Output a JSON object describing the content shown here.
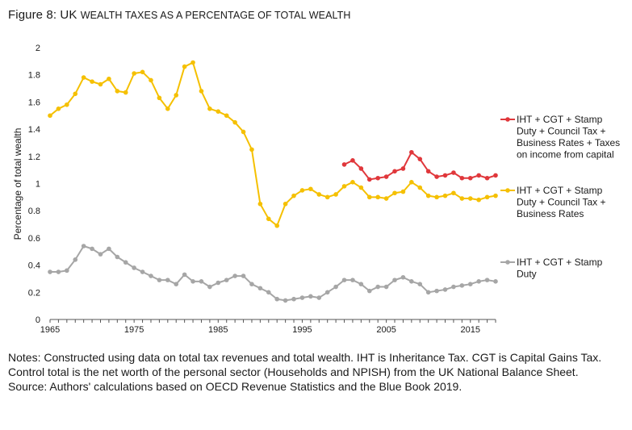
{
  "figure": {
    "label": "Figure 8:",
    "title_prefix": "UK",
    "title_rest": "wealth taxes as a percentage of total wealth"
  },
  "notes": {
    "line1": "Notes: Constructed using data on total tax revenues and total wealth. IHT is Inheritance Tax. CGT is Capital Gains Tax. Control total is the net worth of the personal sector (Households and NPISH) from the UK National Balance Sheet.",
    "line2": "Source: Authors' calculations based on OECD Revenue Statistics and the Blue Book 2019."
  },
  "chart_data": {
    "type": "line",
    "title": "UK wealth taxes as a percentage of total wealth",
    "xlabel": "",
    "ylabel": "Percentage of total wealth",
    "xlim": [
      1965,
      2018
    ],
    "ylim": [
      0,
      2
    ],
    "x_ticks": [
      1965,
      1975,
      1985,
      1995,
      2005,
      2015
    ],
    "y_ticks": [
      0,
      0.2,
      0.4,
      0.6,
      0.8,
      1,
      1.2,
      1.4,
      1.6,
      1.8,
      2
    ],
    "grid": false,
    "legend_position": "right",
    "series": [
      {
        "name": "IHT + CGT + Stamp Duty + Council Tax + Business Rates + Taxes on income from capital",
        "legend_lines": [
          "IHT + CGT + Stamp",
          "Duty + Council Tax +",
          "Business Rates + Taxes",
          "on income from capital"
        ],
        "color": "#e0373b",
        "x_start": 2000,
        "values": [
          1.14,
          1.17,
          1.11,
          1.03,
          1.04,
          1.05,
          1.09,
          1.11,
          1.23,
          1.18,
          1.09,
          1.05,
          1.06,
          1.08,
          1.04,
          1.04,
          1.06,
          1.04,
          1.06
        ]
      },
      {
        "name": "IHT + CGT + Stamp Duty + Council Tax + Business Rates",
        "legend_lines": [
          "IHT + CGT + Stamp",
          "Duty + Council Tax +",
          "Business Rates"
        ],
        "color": "#f5c000",
        "x_start": 1965,
        "values": [
          1.5,
          1.55,
          1.58,
          1.66,
          1.78,
          1.75,
          1.73,
          1.77,
          1.68,
          1.67,
          1.81,
          1.82,
          1.76,
          1.63,
          1.55,
          1.65,
          1.86,
          1.89,
          1.68,
          1.55,
          1.53,
          1.5,
          1.45,
          1.38,
          1.25,
          0.85,
          0.74,
          0.69,
          0.85,
          0.91,
          0.95,
          0.96,
          0.92,
          0.9,
          0.92,
          0.98,
          1.01,
          0.97,
          0.9,
          0.9,
          0.89,
          0.93,
          0.94,
          1.01,
          0.97,
          0.91,
          0.9,
          0.91,
          0.93,
          0.89,
          0.89,
          0.88,
          0.9,
          0.91
        ]
      },
      {
        "name": "IHT + CGT + Stamp Duty",
        "legend_lines": [
          "IHT + CGT + Stamp",
          "Duty"
        ],
        "color": "#a6a6a6",
        "x_start": 1965,
        "values": [
          0.35,
          0.35,
          0.36,
          0.44,
          0.54,
          0.52,
          0.48,
          0.52,
          0.46,
          0.42,
          0.38,
          0.35,
          0.32,
          0.29,
          0.29,
          0.26,
          0.33,
          0.28,
          0.28,
          0.24,
          0.27,
          0.29,
          0.32,
          0.32,
          0.26,
          0.23,
          0.2,
          0.15,
          0.14,
          0.15,
          0.16,
          0.17,
          0.16,
          0.2,
          0.24,
          0.29,
          0.29,
          0.26,
          0.21,
          0.24,
          0.24,
          0.29,
          0.31,
          0.28,
          0.26,
          0.2,
          0.21,
          0.22,
          0.24,
          0.25,
          0.26,
          0.28,
          0.29,
          0.28
        ]
      }
    ]
  }
}
